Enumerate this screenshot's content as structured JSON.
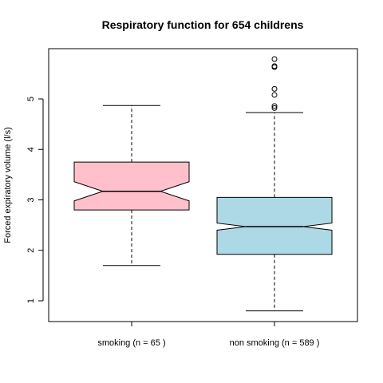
{
  "chart_data": {
    "type": "boxplot",
    "title": "Respiratory function for 654 childrens",
    "xlabel": "",
    "ylabel": "Forced expiratory volume (l/s)",
    "ylim": [
      0.6,
      6.0
    ],
    "yticks": [
      1,
      2,
      3,
      4,
      5
    ],
    "notched": true,
    "grid": false,
    "categories": [
      "smoking (n = 65 )",
      "non smoking (n = 589 )"
    ],
    "boxes": [
      {
        "label": "smoking (n = 65 )",
        "color": "#ffc0cb",
        "whisker_low": 1.7,
        "q1": 2.8,
        "median": 3.17,
        "q3": 3.75,
        "whisker_high": 4.87,
        "notch_low": 2.98,
        "notch_high": 3.36,
        "outliers": []
      },
      {
        "label": "non smoking (n = 589 )",
        "color": "#add8e6",
        "whisker_low": 0.8,
        "q1": 1.92,
        "median": 2.47,
        "q3": 3.05,
        "whisker_high": 4.73,
        "notch_low": 2.4,
        "notch_high": 2.54,
        "outliers": [
          4.82,
          4.86,
          5.08,
          5.2,
          5.63,
          5.65,
          5.79
        ]
      }
    ]
  }
}
